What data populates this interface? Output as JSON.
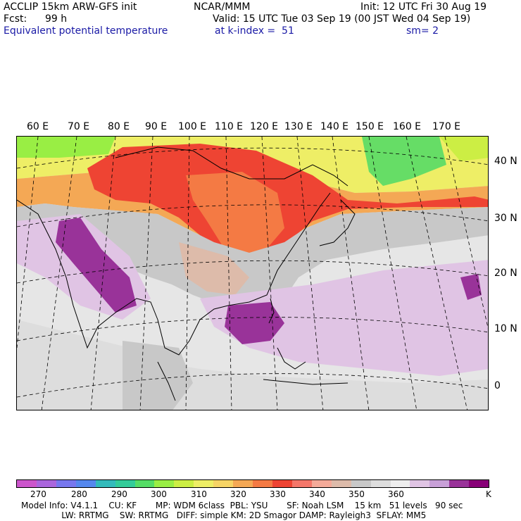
{
  "header": {
    "model": "ACCLIP 15km ARW-GFS init",
    "forecast_label": "Fcst:",
    "forecast_value": "99 h",
    "field": "Equivalent potential temperature",
    "org": "NCAR/MMM",
    "valid": "Valid: 15 UTC Tue 03 Sep 19 (00 JST Wed 04 Sep 19)",
    "level": "at k-index =  51",
    "init": "Init: 12 UTC Fri 30 Aug 19",
    "smoothing": "sm= 2"
  },
  "map": {
    "lon_labels": [
      "60 E",
      "70 E",
      "80 E",
      "90 E",
      "100 E",
      "110 E",
      "120 E",
      "130 E",
      "140 E",
      "150 E",
      "160 E",
      "170 E"
    ],
    "lat_labels": [
      "40 N",
      "30 N",
      "20 N",
      "10 N",
      "0"
    ]
  },
  "colorbar": {
    "colors": [
      "#cc55cc",
      "#aa66dd",
      "#7777ee",
      "#5588ee",
      "#33bbbb",
      "#33cc99",
      "#55dd66",
      "#99ee44",
      "#ccee44",
      "#eeee66",
      "#f6d466",
      "#f4a855",
      "#f47a44",
      "#ee4433",
      "#f4776a",
      "#f4aa99",
      "#ddbbaa",
      "#c8c8c8",
      "#dddddd",
      "#eeeeee",
      "#e0c4e4",
      "#c8a0d8",
      "#993399",
      "#880077"
    ],
    "labels": [
      "270",
      "280",
      "290",
      "300",
      "310",
      "320",
      "330",
      "340",
      "350",
      "360",
      "K"
    ],
    "unit": "K"
  },
  "footer": {
    "line1": "Model Info: V4.1.1    CU: KF       MP: WDM 6class  PBL: YSU       SF: Noah LSM    15 km   51 levels   90 sec",
    "line2": "               LW: RRTMG    SW: RRTMG   DIFF: simple KM: 2D Smagor DAMP: Rayleigh3  SFLAY: MM5"
  }
}
